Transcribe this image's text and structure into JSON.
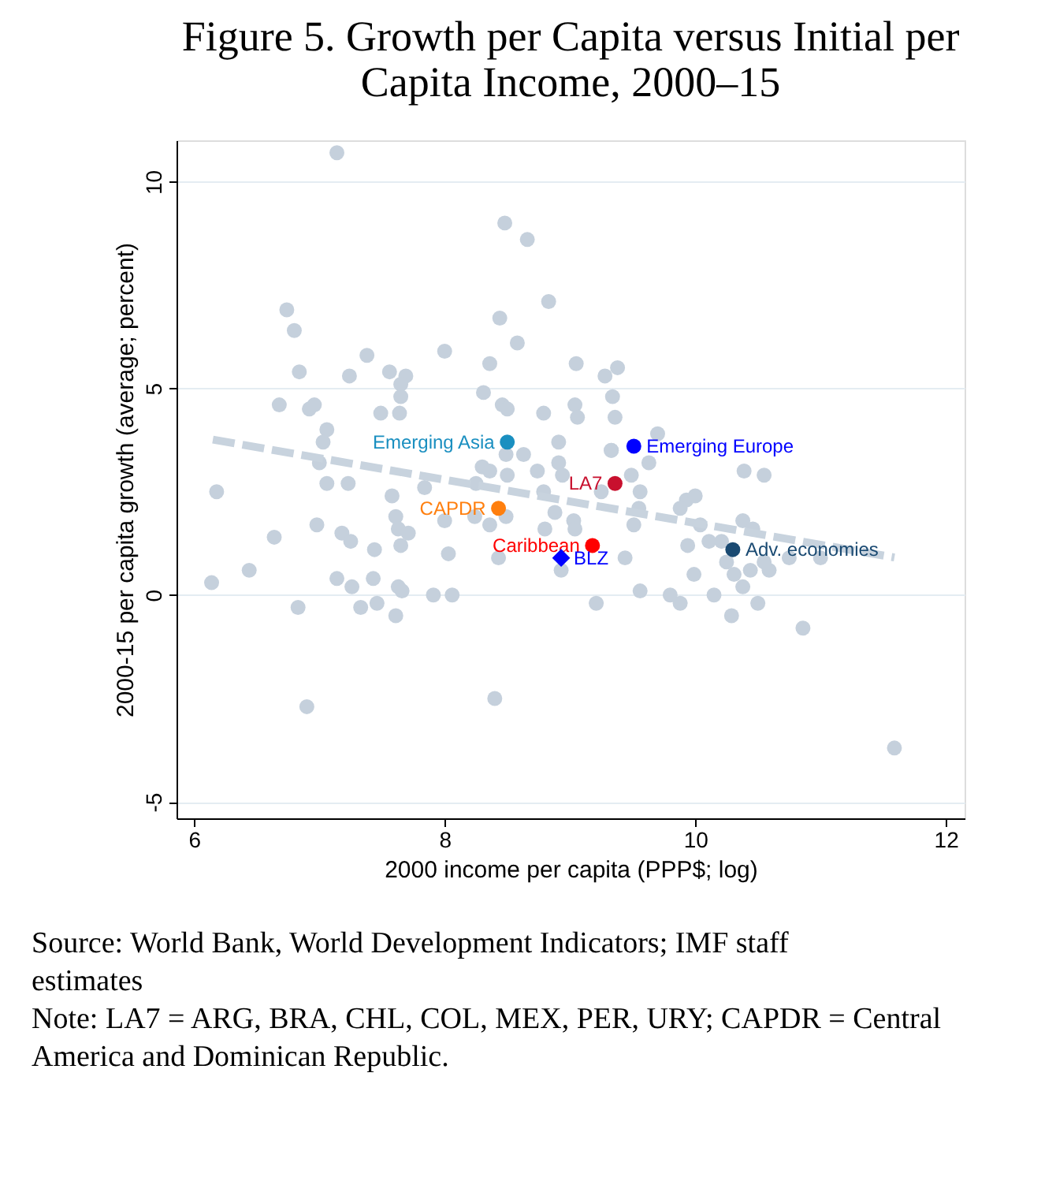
{
  "chart_data": {
    "type": "scatter",
    "title": "Figure 5. Growth per Capita versus Initial per Capita Income, 2000–15",
    "xlabel": "2000 income per capita (PPP$; log)",
    "ylabel": "2000-15 per capita growth (average; percent)",
    "xlim": [
      5.86,
      12.15
    ],
    "ylim": [
      -5.4,
      11
    ],
    "xticks": [
      6,
      8,
      10,
      12
    ],
    "yticks": [
      -5,
      0,
      5,
      10
    ],
    "grid": "y",
    "marker": "circle",
    "series": [
      {
        "color": "#c5d0dc",
        "x": [
          7.14,
          8.48,
          8.66,
          8.83,
          6.74,
          6.8,
          8.44,
          8.58,
          8.0,
          6.84,
          7.24,
          7.38,
          7.56,
          7.69,
          7.65,
          7.65,
          7.64,
          7.49,
          8.36,
          8.31,
          8.46,
          8.5,
          8.79,
          6.68,
          6.92,
          6.96,
          7.06,
          8.91,
          9.05,
          9.28,
          9.38,
          9.34,
          9.04,
          9.06,
          9.36,
          9.7,
          9.33,
          7.03,
          7.0,
          7.06,
          7.23,
          6.18,
          7.58,
          7.84,
          7.61,
          8.0,
          7.63,
          7.71,
          7.65,
          6.98,
          6.64,
          7.18,
          7.25,
          7.44,
          8.03,
          6.44,
          6.14,
          7.14,
          7.26,
          7.43,
          7.63,
          7.66,
          7.91,
          8.06,
          6.83,
          7.33,
          7.46,
          7.61,
          6.9,
          8.4,
          8.25,
          8.3,
          8.36,
          8.5,
          8.63,
          8.74,
          8.79,
          8.49,
          8.36,
          8.49,
          8.43,
          8.24,
          8.88,
          8.8,
          8.93,
          8.91,
          8.94,
          9.03,
          9.04,
          9.33,
          9.25,
          9.49,
          9.56,
          9.55,
          9.51,
          9.44,
          9.63,
          9.93,
          10.0,
          9.88,
          10.04,
          9.94,
          9.99,
          9.56,
          9.21,
          9.8,
          9.88,
          10.15,
          10.29,
          10.5,
          10.86,
          10.39,
          10.55,
          10.38,
          10.46,
          10.11,
          10.21,
          10.25,
          10.31,
          10.38,
          10.44,
          10.59,
          10.55,
          10.75,
          11.0,
          11.59
        ],
        "values": [
          10.7,
          9.0,
          8.6,
          7.1,
          6.9,
          6.4,
          6.7,
          6.1,
          5.9,
          5.4,
          5.3,
          5.8,
          5.4,
          5.3,
          5.1,
          4.8,
          4.4,
          4.4,
          5.6,
          4.9,
          4.6,
          4.5,
          4.4,
          4.6,
          4.5,
          4.6,
          4.0,
          3.7,
          5.6,
          5.3,
          5.5,
          4.8,
          4.6,
          4.3,
          4.3,
          3.9,
          3.5,
          3.7,
          3.2,
          2.7,
          2.7,
          2.5,
          2.4,
          2.6,
          1.9,
          1.8,
          1.6,
          1.5,
          1.2,
          1.7,
          1.4,
          1.5,
          1.3,
          1.1,
          1.0,
          0.6,
          0.3,
          0.4,
          0.2,
          0.4,
          0.2,
          0.1,
          0.0,
          0.0,
          -0.3,
          -0.3,
          -0.2,
          -0.5,
          -2.7,
          -2.5,
          2.7,
          3.1,
          3.0,
          2.9,
          3.4,
          3.0,
          2.5,
          3.4,
          1.7,
          1.9,
          0.9,
          1.9,
          2.0,
          1.6,
          0.6,
          3.2,
          2.9,
          1.8,
          1.6,
          3.5,
          2.5,
          2.9,
          2.5,
          2.1,
          1.7,
          0.9,
          3.2,
          2.3,
          2.4,
          2.1,
          1.7,
          1.2,
          0.5,
          0.1,
          -0.2,
          0.0,
          -0.2,
          0.0,
          -0.5,
          -0.2,
          -0.8,
          3.0,
          2.9,
          1.8,
          1.6,
          1.3,
          1.3,
          0.8,
          0.5,
          0.2,
          0.6,
          0.6,
          0.8,
          0.9,
          0.9,
          -3.7
        ]
      },
      {
        "type": "line",
        "color": "#c8d3de",
        "line_style": "dashed",
        "marker": "none",
        "x": [
          6.15,
          11.59
        ],
        "values": [
          3.76,
          0.91
        ]
      },
      {
        "name": "Emerging Asia",
        "color": "#1a8fc0",
        "x": [
          8.5
        ],
        "values": [
          3.7
        ]
      },
      {
        "name": "Emerging Europe",
        "color": "#0000ff",
        "x": [
          9.51
        ],
        "values": [
          3.6
        ]
      },
      {
        "name": "LA7",
        "color": "#c8102e",
        "x": [
          9.36
        ],
        "values": [
          2.7
        ]
      },
      {
        "name": "CAPDR",
        "color": "#ff7f0e",
        "x": [
          8.43
        ],
        "values": [
          2.1
        ]
      },
      {
        "name": "Caribbean",
        "color": "#ff0000",
        "x": [
          9.18
        ],
        "values": [
          1.2
        ]
      },
      {
        "name": "BLZ",
        "color": "#0000ff",
        "marker": "diamond",
        "x": [
          8.93
        ],
        "values": [
          0.9
        ]
      },
      {
        "name": "Adv. economies",
        "color": "#1a4a72",
        "x": [
          10.3
        ],
        "values": [
          1.1
        ]
      }
    ],
    "annotations": [
      "Source: World Bank, World Development Indicators; IMF staff estimates",
      "Note: LA7 = ARG, BRA, CHL, COL, MEX, PER, URY; CAPDR = Central America and Dominican Republic."
    ]
  }
}
